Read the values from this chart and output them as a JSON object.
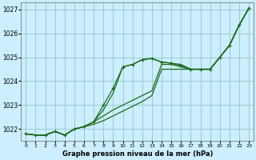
{
  "title": "Graphe pression niveau de la mer (hPa)",
  "bg_color": "#cceeff",
  "grid_color": "#99cccc",
  "line_color": "#1a6b1a",
  "xlim": [
    -0.5,
    23.5
  ],
  "ylim": [
    1021.5,
    1027.3
  ],
  "yticks": [
    1022,
    1023,
    1024,
    1025,
    1026,
    1027
  ],
  "xticks": [
    0,
    1,
    2,
    3,
    4,
    5,
    6,
    7,
    8,
    9,
    10,
    11,
    12,
    13,
    14,
    15,
    16,
    17,
    18,
    19,
    20,
    21,
    22,
    23
  ],
  "line_upper_no_marker": {
    "x": [
      0,
      1,
      2,
      3,
      4,
      5,
      6,
      7,
      8,
      9,
      10,
      11,
      12,
      13,
      14,
      15,
      16,
      17,
      18,
      19,
      20,
      21,
      22,
      23
    ],
    "y": [
      1021.8,
      1021.75,
      1021.75,
      1021.9,
      1021.75,
      1022.0,
      1022.1,
      1022.3,
      1022.8,
      1023.5,
      1024.6,
      1024.7,
      1024.9,
      1024.95,
      1024.8,
      1024.75,
      1024.7,
      1024.5,
      1024.5,
      1024.5,
      1025.0,
      1025.5,
      1026.35,
      1027.05
    ]
  },
  "line_with_marker": {
    "x": [
      0,
      1,
      2,
      3,
      4,
      5,
      6,
      7,
      8,
      9,
      10,
      11,
      12,
      13,
      14,
      15,
      16,
      17,
      18,
      19,
      20,
      21,
      22,
      23
    ],
    "y": [
      1021.8,
      1021.75,
      1021.75,
      1021.9,
      1021.75,
      1022.0,
      1022.1,
      1022.3,
      1023.0,
      1023.7,
      1024.6,
      1024.7,
      1024.9,
      1024.95,
      1024.8,
      1024.75,
      1024.65,
      1024.5,
      1024.5,
      1024.5,
      1025.0,
      1025.5,
      1026.35,
      1027.05
    ]
  },
  "line_mid1": {
    "x": [
      0,
      1,
      2,
      3,
      4,
      5,
      6,
      7,
      8,
      9,
      10,
      11,
      12,
      13,
      14,
      15,
      16,
      17,
      18,
      19,
      20,
      21,
      22,
      23
    ],
    "y": [
      1021.8,
      1021.75,
      1021.75,
      1021.9,
      1021.75,
      1022.0,
      1022.1,
      1022.3,
      1022.55,
      1022.8,
      1023.0,
      1023.2,
      1023.4,
      1023.6,
      1024.7,
      1024.7,
      1024.6,
      1024.5,
      1024.5,
      1024.5,
      1025.0,
      1025.5,
      1026.35,
      1027.05
    ]
  },
  "line_mid2": {
    "x": [
      0,
      1,
      2,
      3,
      4,
      5,
      6,
      7,
      8,
      9,
      10,
      11,
      12,
      13,
      14,
      15,
      16,
      17,
      18,
      19,
      20,
      21,
      22,
      23
    ],
    "y": [
      1021.8,
      1021.75,
      1021.75,
      1021.9,
      1021.75,
      1022.0,
      1022.1,
      1022.2,
      1022.35,
      1022.55,
      1022.75,
      1022.95,
      1023.15,
      1023.4,
      1024.5,
      1024.5,
      1024.5,
      1024.5,
      1024.5,
      1024.5,
      1025.0,
      1025.5,
      1026.35,
      1027.05
    ]
  }
}
